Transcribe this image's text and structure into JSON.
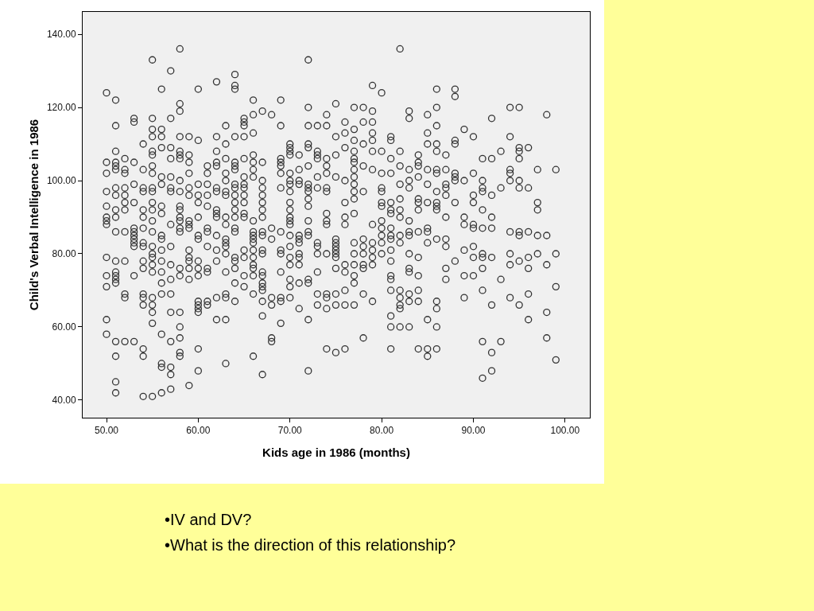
{
  "chart_data": {
    "type": "scatter",
    "xlabel": "Kids age in 1986 (months)",
    "ylabel": "Child's Verbal Intelligence in 1986",
    "annotations": [
      "•IV and DV?",
      "•What is the direction of this relationship?"
    ],
    "marker": "circle",
    "color": "#333333",
    "xlim": [
      47.4,
      102.7
    ],
    "ylim": [
      35.2,
      146.1
    ],
    "xticks": [
      {
        "value": 50,
        "label": "50.00"
      },
      {
        "value": 60,
        "label": "60.00"
      },
      {
        "value": 70,
        "label": "70.00"
      },
      {
        "value": 80,
        "label": "80.00"
      },
      {
        "value": 90,
        "label": "90.00"
      },
      {
        "value": 100,
        "label": "100.00"
      }
    ],
    "yticks": [
      {
        "value": 40,
        "label": "40.00"
      },
      {
        "value": 60,
        "label": "60.00"
      },
      {
        "value": 80,
        "label": "80.00"
      },
      {
        "value": 100,
        "label": "100.00"
      },
      {
        "value": 120,
        "label": "120.00"
      },
      {
        "value": 140,
        "label": "140.00"
      }
    ],
    "x": [
      50,
      50,
      50,
      50,
      50,
      50,
      50,
      50,
      50,
      50,
      50,
      50,
      50,
      51,
      51,
      51,
      51,
      51,
      51,
      51,
      51,
      51,
      51,
      51,
      51,
      51,
      51,
      51,
      51,
      51,
      51,
      51,
      51,
      52,
      52,
      52,
      52,
      52,
      52,
      52,
      52,
      52,
      52,
      52,
      52,
      53,
      53,
      53,
      53,
      53,
      53,
      53,
      53,
      53,
      53,
      53,
      53,
      53,
      54,
      54,
      54,
      54,
      54,
      54,
      54,
      54,
      54,
      54,
      54,
      54,
      54,
      54,
      54,
      54,
      54,
      55,
      55,
      55,
      55,
      55,
      55,
      55,
      55,
      55,
      55,
      55,
      55,
      55,
      55,
      55,
      55,
      55,
      55,
      55,
      55,
      55,
      55,
      55,
      55,
      56,
      56,
      56,
      56,
      56,
      56,
      56,
      56,
      56,
      56,
      56,
      56,
      56,
      56,
      56,
      56,
      56,
      56,
      56,
      57,
      57,
      57,
      57,
      57,
      57,
      57,
      57,
      57,
      57,
      57,
      57,
      57,
      57,
      57,
      57,
      57,
      58,
      58,
      58,
      58,
      58,
      58,
      58,
      58,
      58,
      58,
      58,
      58,
      58,
      58,
      58,
      58,
      58,
      58,
      58,
      58,
      58,
      58,
      59,
      59,
      59,
      59,
      59,
      59,
      59,
      59,
      59,
      59,
      59,
      59,
      59,
      59,
      59,
      60,
      60,
      60,
      60,
      60,
      60,
      60,
      60,
      60,
      60,
      60,
      60,
      60,
      60,
      60,
      60,
      60,
      61,
      61,
      61,
      61,
      61,
      61,
      61,
      61,
      61,
      61,
      61,
      61,
      62,
      62,
      62,
      62,
      62,
      62,
      62,
      62,
      62,
      62,
      62,
      62,
      62,
      62,
      62,
      63,
      63,
      63,
      63,
      63,
      63,
      63,
      63,
      63,
      63,
      63,
      63,
      63,
      63,
      63,
      63,
      63,
      63,
      64,
      64,
      64,
      64,
      64,
      64,
      64,
      64,
      64,
      64,
      64,
      64,
      64,
      64,
      64,
      64,
      64,
      64,
      64,
      64,
      65,
      65,
      65,
      65,
      65,
      65,
      65,
      65,
      65,
      65,
      65,
      65,
      65,
      65,
      65,
      65,
      66,
      66,
      66,
      66,
      66,
      66,
      66,
      66,
      66,
      66,
      66,
      66,
      66,
      66,
      66,
      66,
      66,
      66,
      66,
      67,
      67,
      67,
      67,
      67,
      67,
      67,
      67,
      67,
      67,
      67,
      67,
      67,
      67,
      67,
      67,
      67,
      67,
      67,
      67,
      68,
      68,
      68,
      68,
      68,
      68,
      68,
      69,
      69,
      69,
      69,
      69,
      69,
      69,
      69,
      69,
      69,
      69,
      69,
      69,
      69,
      70,
      70,
      70,
      70,
      70,
      70,
      70,
      70,
      70,
      70,
      70,
      70,
      70,
      70,
      70,
      70,
      70,
      70,
      70,
      70,
      71,
      71,
      71,
      71,
      71,
      71,
      71,
      71,
      71,
      71,
      71,
      71,
      72,
      72,
      72,
      72,
      72,
      72,
      72,
      72,
      72,
      72,
      72,
      72,
      72,
      72,
      72,
      72,
      72,
      72,
      73,
      73,
      73,
      73,
      73,
      73,
      73,
      73,
      73,
      73,
      73,
      73,
      74,
      74,
      74,
      74,
      74,
      74,
      74,
      74,
      74,
      74,
      74,
      74,
      74,
      74,
      74,
      75,
      75,
      75,
      75,
      75,
      75,
      75,
      75,
      75,
      75,
      75,
      75,
      75,
      75,
      76,
      76,
      76,
      76,
      76,
      76,
      76,
      76,
      76,
      76,
      76,
      76,
      77,
      77,
      77,
      77,
      77,
      77,
      77,
      77,
      77,
      77,
      77,
      77,
      77,
      77,
      77,
      77,
      77,
      77,
      78,
      78,
      78,
      78,
      78,
      78,
      78,
      78,
      78,
      78,
      78,
      78,
      79,
      79,
      79,
      79,
      79,
      79,
      79,
      79,
      79,
      79,
      79,
      79,
      79,
      80,
      80,
      80,
      80,
      80,
      80,
      80,
      80,
      80,
      80,
      80,
      80,
      81,
      81,
      81,
      81,
      81,
      81,
      81,
      81,
      81,
      81,
      81,
      81,
      81,
      81,
      81,
      81,
      81,
      81,
      82,
      82,
      82,
      82,
      82,
      82,
      82,
      82,
      82,
      82,
      82,
      82,
      82,
      82,
      83,
      83,
      83,
      83,
      83,
      83,
      83,
      83,
      83,
      83,
      83,
      83,
      83,
      83,
      84,
      84,
      84,
      84,
      84,
      84,
      84,
      84,
      84,
      84,
      84,
      84,
      84,
      85,
      85,
      85,
      85,
      85,
      85,
      85,
      85,
      85,
      85,
      85,
      85,
      86,
      86,
      86,
      86,
      86,
      86,
      86,
      86,
      86,
      86,
      86,
      86,
      86,
      86,
      86,
      86,
      87,
      87,
      87,
      87,
      87,
      87,
      87,
      87,
      87,
      87,
      88,
      88,
      88,
      88,
      88,
      88,
      88,
      88,
      88,
      89,
      89,
      89,
      89,
      89,
      89,
      89,
      90,
      90,
      90,
      90,
      90,
      90,
      90,
      90,
      90,
      91,
      91,
      91,
      91,
      91,
      91,
      91,
      91,
      91,
      91,
      91,
      91,
      92,
      92,
      92,
      92,
      92,
      92,
      92,
      92,
      92,
      93,
      93,
      93,
      93,
      94,
      94,
      94,
      94,
      94,
      94,
      94,
      94,
      94,
      95,
      95,
      95,
      95,
      95,
      95,
      95,
      95,
      95,
      95,
      96,
      96,
      96,
      96,
      96,
      96,
      96,
      97,
      97,
      97,
      97,
      97,
      98,
      98,
      98,
      98,
      98,
      99,
      99,
      99,
      99
    ],
    "values": [
      124,
      105,
      102,
      97,
      93,
      90,
      89,
      88,
      79,
      74,
      71,
      62,
      58,
      122,
      115,
      108,
      105,
      104,
      103,
      98,
      96,
      92,
      90,
      86,
      78,
      75,
      74,
      73,
      72,
      56,
      52,
      45,
      42,
      106,
      103,
      102,
      98,
      96,
      94,
      92,
      86,
      78,
      69,
      68,
      56,
      117,
      116,
      105,
      99,
      94,
      87,
      86,
      85,
      84,
      83,
      82,
      74,
      56,
      110,
      103,
      98,
      97,
      92,
      90,
      87,
      83,
      82,
      78,
      76,
      69,
      68,
      66,
      54,
      52,
      41,
      133,
      117,
      114,
      112,
      108,
      107,
      104,
      102,
      98,
      97,
      94,
      92,
      89,
      86,
      82,
      80,
      79,
      77,
      75,
      68,
      66,
      64,
      61,
      41,
      125,
      114,
      112,
      109,
      101,
      99,
      93,
      91,
      85,
      84,
      81,
      78,
      75,
      72,
      69,
      58,
      50,
      49,
      42,
      130,
      117,
      109,
      106,
      101,
      98,
      97,
      88,
      82,
      77,
      73,
      69,
      64,
      56,
      49,
      47,
      43,
      136,
      121,
      119,
      112,
      108,
      107,
      106,
      100,
      97,
      93,
      92,
      90,
      89,
      87,
      86,
      76,
      74,
      64,
      60,
      57,
      53,
      52,
      112,
      107,
      105,
      102,
      98,
      96,
      89,
      88,
      87,
      81,
      79,
      78,
      76,
      73,
      44,
      125,
      111,
      99,
      96,
      94,
      90,
      85,
      84,
      78,
      76,
      74,
      67,
      66,
      65,
      64,
      54,
      48,
      104,
      102,
      99,
      96,
      93,
      87,
      86,
      82,
      76,
      75,
      67,
      66,
      127,
      112,
      108,
      105,
      104,
      98,
      97,
      92,
      91,
      90,
      85,
      81,
      78,
      68,
      62,
      115,
      110,
      106,
      102,
      100,
      97,
      96,
      90,
      88,
      84,
      83,
      82,
      80,
      75,
      69,
      68,
      62,
      50,
      129,
      126,
      125,
      112,
      105,
      104,
      103,
      99,
      98,
      96,
      94,
      92,
      90,
      87,
      86,
      79,
      78,
      76,
      72,
      67,
      117,
      116,
      115,
      112,
      106,
      101,
      99,
      98,
      96,
      94,
      91,
      90,
      81,
      79,
      74,
      71,
      122,
      118,
      113,
      107,
      105,
      103,
      101,
      89,
      86,
      85,
      84,
      83,
      81,
      79,
      77,
      76,
      74,
      69,
      52,
      119,
      105,
      100,
      98,
      96,
      94,
      92,
      90,
      86,
      85,
      81,
      80,
      75,
      74,
      72,
      71,
      70,
      67,
      63,
      47,
      118,
      87,
      84,
      68,
      66,
      57,
      56,
      122,
      115,
      106,
      105,
      104,
      102,
      98,
      86,
      81,
      80,
      75,
      68,
      67,
      61,
      110,
      109,
      108,
      107,
      102,
      100,
      99,
      97,
      94,
      92,
      90,
      89,
      88,
      85,
      82,
      79,
      77,
      73,
      71,
      68,
      107,
      103,
      100,
      99,
      85,
      84,
      83,
      80,
      79,
      77,
      72,
      65,
      133,
      120,
      115,
      110,
      109,
      104,
      99,
      98,
      97,
      95,
      93,
      89,
      86,
      85,
      73,
      72,
      62,
      48,
      115,
      108,
      107,
      106,
      101,
      98,
      83,
      82,
      80,
      75,
      69,
      66,
      118,
      115,
      106,
      104,
      102,
      98,
      97,
      91,
      89,
      88,
      80,
      69,
      68,
      65,
      54,
      121,
      112,
      107,
      101,
      84,
      83,
      82,
      81,
      80,
      79,
      76,
      69,
      66,
      53,
      116,
      113,
      109,
      100,
      94,
      90,
      88,
      77,
      75,
      70,
      66,
      54,
      120,
      114,
      111,
      108,
      106,
      105,
      103,
      101,
      99,
      97,
      95,
      91,
      83,
      80,
      77,
      74,
      72,
      66,
      120,
      116,
      110,
      104,
      97,
      84,
      82,
      80,
      77,
      76,
      69,
      57,
      126,
      119,
      116,
      113,
      111,
      108,
      103,
      88,
      83,
      81,
      79,
      77,
      67,
      124,
      108,
      102,
      98,
      97,
      94,
      93,
      89,
      87,
      85,
      83,
      80,
      112,
      111,
      106,
      102,
      94,
      92,
      91,
      87,
      85,
      84,
      81,
      78,
      74,
      73,
      70,
      63,
      60,
      54,
      136,
      108,
      104,
      99,
      95,
      92,
      90,
      85,
      83,
      70,
      68,
      66,
      65,
      60,
      119,
      117,
      103,
      100,
      98,
      89,
      86,
      85,
      80,
      76,
      75,
      69,
      67,
      60,
      107,
      105,
      104,
      101,
      95,
      94,
      92,
      86,
      79,
      74,
      70,
      67,
      54,
      118,
      113,
      110,
      103,
      99,
      94,
      87,
      86,
      83,
      62,
      54,
      52,
      125,
      120,
      115,
      110,
      108,
      103,
      102,
      97,
      94,
      93,
      92,
      84,
      67,
      65,
      60,
      54,
      107,
      103,
      99,
      98,
      96,
      90,
      84,
      82,
      76,
      73,
      125,
      123,
      111,
      110,
      102,
      101,
      100,
      94,
      78,
      114,
      100,
      90,
      88,
      81,
      74,
      68,
      112,
      102,
      96,
      94,
      88,
      87,
      82,
      79,
      74,
      106,
      100,
      98,
      97,
      92,
      87,
      80,
      79,
      76,
      70,
      56,
      46,
      117,
      106,
      96,
      90,
      87,
      79,
      66,
      53,
      48,
      108,
      98,
      73,
      56,
      120,
      112,
      103,
      102,
      100,
      86,
      80,
      77,
      68,
      120,
      109,
      108,
      106,
      100,
      98,
      86,
      85,
      78,
      66,
      109,
      98,
      86,
      79,
      76,
      69,
      62,
      103,
      94,
      92,
      85,
      80,
      118,
      85,
      77,
      64,
      57,
      103,
      80,
      71,
      51
    ]
  }
}
